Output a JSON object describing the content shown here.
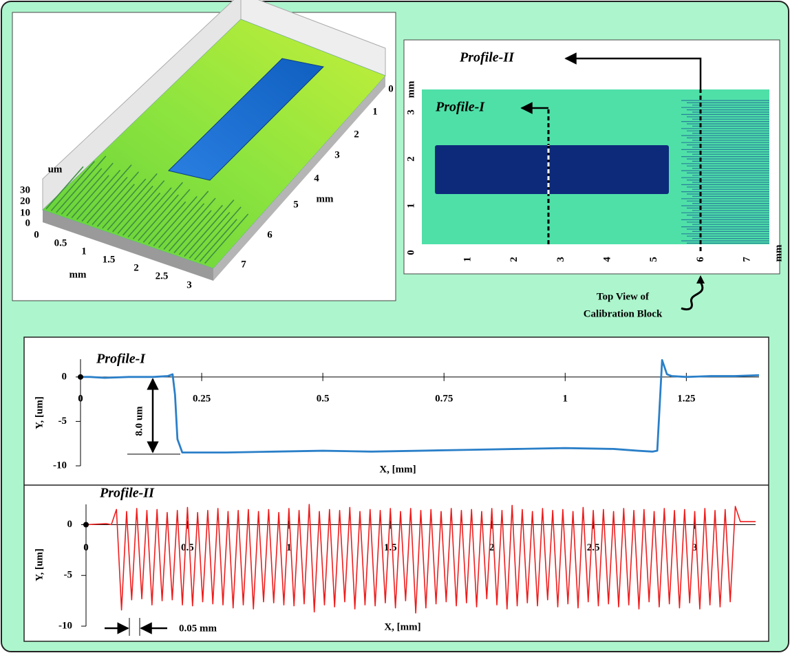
{
  "surface_view": {
    "z_unit": "um",
    "z_ticks": [
      "30",
      "20",
      "10",
      "0"
    ],
    "x_ticks": [
      "0",
      "0.5",
      "1",
      "1.5",
      "2",
      "2.5",
      "3"
    ],
    "x_unit": "mm",
    "y_ticks": [
      "0",
      "1",
      "2",
      "3",
      "4",
      "5",
      "6",
      "7"
    ],
    "y_unit": "mm"
  },
  "top_view": {
    "profile_1": "Profile-I",
    "profile_2": "Profile-II",
    "x_ticks": [
      "1",
      "2",
      "3",
      "4",
      "5",
      "6",
      "7"
    ],
    "x_unit": "mm",
    "y_ticks": [
      "0",
      "1",
      "2",
      "3"
    ],
    "y_unit": "mm",
    "caption": [
      "Top View of",
      "Calibration Block"
    ]
  },
  "chart_data": [
    {
      "type": "line",
      "title": "Profile-I",
      "x_label": "X, [mm]",
      "y_label": "Y, [um]",
      "annotation": "8.0 um",
      "color": "#2a7fc8",
      "x": [
        0,
        0.02,
        0.05,
        0.1,
        0.15,
        0.18,
        0.19,
        0.195,
        0.2,
        0.21,
        0.25,
        0.3,
        0.4,
        0.5,
        0.6,
        0.7,
        0.8,
        0.9,
        1.0,
        1.1,
        1.15,
        1.18,
        1.19,
        1.2,
        1.21,
        1.22,
        1.25,
        1.3,
        1.35,
        1.4
      ],
      "values": [
        0,
        0,
        -0.1,
        0,
        0,
        0.1,
        0.3,
        -2,
        -7,
        -8.5,
        -8.5,
        -8.5,
        -8.4,
        -8.3,
        -8.4,
        -8.3,
        -8.2,
        -8.1,
        -8.0,
        -8.1,
        -8.3,
        -8.4,
        -8.3,
        1.9,
        0.3,
        0.1,
        0,
        0.1,
        0.1,
        0.2
      ],
      "xlim": [
        0,
        1.4
      ],
      "xticks": [
        0,
        0.25,
        0.5,
        0.75,
        1,
        1.25
      ],
      "ylim": [
        -10,
        2
      ],
      "yticks": [
        0,
        -5,
        -10
      ]
    },
    {
      "type": "line",
      "title": "Profile-II",
      "x_label": "X, [mm]",
      "y_label": "Y, [um]",
      "annotation": "0.05 mm",
      "color": "#ee1c1c",
      "x": [
        0,
        0.1,
        0.125,
        0.15,
        0.175,
        0.2,
        0.225,
        0.25,
        0.275,
        0.3,
        0.325,
        0.35,
        0.375,
        0.4,
        0.425,
        0.45,
        0.475,
        0.5,
        0.525,
        0.55,
        0.575,
        0.6,
        0.625,
        0.65,
        0.675,
        0.7,
        0.725,
        0.75,
        0.775,
        0.8,
        0.825,
        0.85,
        0.875,
        0.9,
        0.925,
        0.95,
        0.975,
        1,
        1.025,
        1.05,
        1.075,
        1.1,
        1.125,
        1.15,
        1.175,
        1.2,
        1.225,
        1.25,
        1.275,
        1.3,
        1.325,
        1.35,
        1.375,
        1.4,
        1.425,
        1.45,
        1.475,
        1.5,
        1.525,
        1.55,
        1.575,
        1.6,
        1.625,
        1.65,
        1.675,
        1.7,
        1.725,
        1.75,
        1.775,
        1.8,
        1.825,
        1.85,
        1.875,
        1.9,
        1.925,
        1.95,
        1.975,
        2,
        2.025,
        2.05,
        2.075,
        2.1,
        2.125,
        2.15,
        2.175,
        2.2,
        2.225,
        2.25,
        2.275,
        2.3,
        2.325,
        2.35,
        2.375,
        2.4,
        2.425,
        2.45,
        2.475,
        2.5,
        2.525,
        2.55,
        2.575,
        2.6,
        2.625,
        2.65,
        2.675,
        2.7,
        2.725,
        2.75,
        2.775,
        2.8,
        2.825,
        2.85,
        2.875,
        2.9,
        2.925,
        2.95,
        2.975,
        3,
        3.025,
        3.05,
        3.075,
        3.1,
        3.125,
        3.15,
        3.175,
        3.2,
        3.225,
        3.3
      ],
      "values": [
        0,
        0.1,
        0,
        1.5,
        -8.4,
        1.3,
        -7.4,
        1.6,
        -7.3,
        1.4,
        -7.9,
        1.5,
        -7.5,
        1.2,
        -7.4,
        1.4,
        -7.9,
        1.7,
        -8.0,
        1.2,
        -7.6,
        1.4,
        -7.8,
        1.6,
        -7.9,
        1.3,
        -8.2,
        1.4,
        -7.9,
        1.5,
        -8.3,
        1.3,
        -7.6,
        1.5,
        -7.7,
        1.2,
        -7.9,
        1.6,
        -8.0,
        1.4,
        -7.8,
        2.0,
        -8.6,
        1.3,
        -7.9,
        1.5,
        -8.1,
        1.4,
        -7.6,
        1.7,
        -8.3,
        1.3,
        -7.9,
        1.5,
        -8.0,
        1.4,
        -7.7,
        1.6,
        -8.2,
        1.3,
        -7.5,
        1.6,
        -8.7,
        1.4,
        -8.2,
        1.5,
        -7.8,
        1.3,
        -7.6,
        1.6,
        -8.0,
        1.4,
        -7.7,
        1.5,
        -8.1,
        1.3,
        -7.3,
        1.6,
        -7.9,
        1.4,
        -8.3,
        1.9,
        -8.0,
        1.5,
        -7.7,
        1.3,
        -8.0,
        1.6,
        -7.4,
        1.4,
        -8.1,
        1.5,
        -7.8,
        1.3,
        -8.2,
        1.7,
        -7.6,
        1.4,
        -8.0,
        1.5,
        -7.8,
        1.3,
        -8.1,
        1.6,
        -7.9,
        1.4,
        -8.3,
        1.5,
        -7.6,
        1.3,
        -8.1,
        1.6,
        -7.8,
        1.4,
        -8.2,
        1.5,
        -7.7,
        1.3,
        -8.3,
        1.6,
        -7.9,
        1.4,
        -8.1,
        1.5,
        -7.6,
        1.8,
        0.3,
        0.3
      ],
      "xlim": [
        0,
        3.3
      ],
      "xticks": [
        0,
        0.5,
        1,
        1.5,
        2,
        2.5,
        3
      ],
      "ylim": [
        -10,
        2
      ],
      "yticks": [
        0,
        -5,
        -10
      ]
    }
  ]
}
